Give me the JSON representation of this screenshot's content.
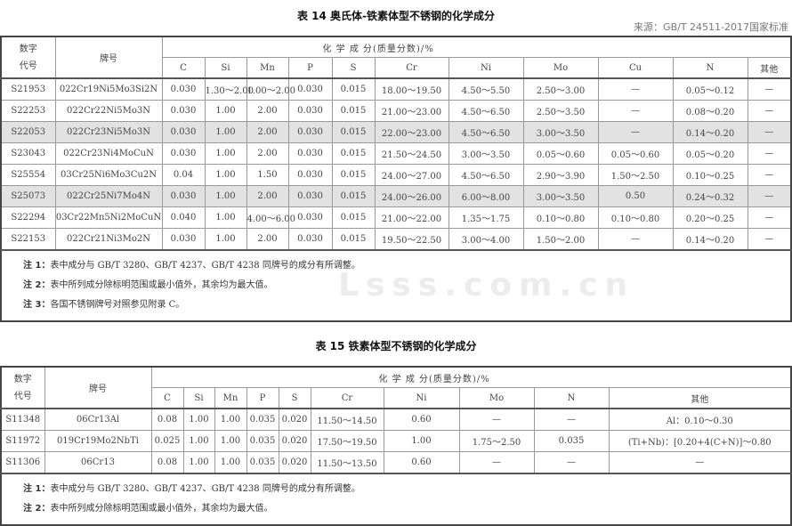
{
  "table14": {
    "title": "表 14   奥氏体-铁素体型不锈钢的化学成分",
    "source": "来源：GB/T 24511-2017国家标准",
    "col_code": "数字\n代号",
    "col_grade": "牌号",
    "composition_header": "化  学  成  分(质量分数)/%",
    "elements": [
      "C",
      "Si",
      "Mn",
      "P",
      "S",
      "Cr",
      "Ni",
      "Mo",
      "Cu",
      "N",
      "其他"
    ],
    "rows": [
      {
        "code": "S21953",
        "grade": "022Cr19Ni5Mo3Si2N",
        "values": [
          "0.030",
          "1.30～2.00",
          "1.00～2.00",
          "0.030",
          "0.015",
          "18.00～19.50",
          "4.50～5.50",
          "2.50～3.00",
          "—",
          "0.05～0.12",
          "—"
        ],
        "highlight": false
      },
      {
        "code": "S22253",
        "grade": "022Cr22Ni5Mo3N",
        "values": [
          "0.030",
          "1.00",
          "2.00",
          "0.030",
          "0.015",
          "21.00～23.00",
          "4.50～6.50",
          "2.50～3.50",
          "—",
          "0.08～0.20",
          "—"
        ],
        "highlight": false
      },
      {
        "code": "S22053",
        "grade": "022Cr23Ni5Mo3N",
        "values": [
          "0.030",
          "1.00",
          "2.00",
          "0.030",
          "0.015",
          "22.00～23.00",
          "4.50～6.50",
          "3.00～3.50",
          "—",
          "0.14～0.20",
          "—"
        ],
        "highlight": true
      },
      {
        "code": "S23043",
        "grade": "022Cr23Ni4MoCuN",
        "values": [
          "0.030",
          "1.00",
          "2.00",
          "0.030",
          "0.015",
          "21.50～24.50",
          "3.00～3.50",
          "0.05～0.60",
          "0.05～0.60",
          "0.05～0.20",
          "—"
        ],
        "highlight": false
      },
      {
        "code": "S25554",
        "grade": "03Cr25Ni6Mo3Cu2N",
        "values": [
          "0.04",
          "1.00",
          "1.50",
          "0.030",
          "0.015",
          "24.00～27.00",
          "4.50～6.50",
          "2.90～3.90",
          "1.50～2.50",
          "0.10～0.25",
          "—"
        ],
        "highlight": false
      },
      {
        "code": "S25073",
        "grade": "022Cr25Ni7Mo4N",
        "values": [
          "0.030",
          "1.00",
          "2.00",
          "0.030",
          "0.015",
          "24.00～26.00",
          "6.00～8.00",
          "3.00～3.50",
          "0.50",
          "0.24～0.32",
          "—"
        ],
        "highlight": true
      },
      {
        "code": "S22294",
        "grade": "03Cr22Mn5Ni2MoCuN",
        "values": [
          "0.040",
          "1.00",
          "4.00～6.00",
          "0.030",
          "0.015",
          "21.00～22.00",
          "1.35～1.75",
          "0.10～0.80",
          "0.10～0.80",
          "0.20～0.25",
          "—"
        ],
        "highlight": false
      },
      {
        "code": "S22153",
        "grade": "022Cr21Ni3Mo2N",
        "values": [
          "0.030",
          "1.00",
          "2.00",
          "0.030",
          "0.015",
          "19.50～22.50",
          "3.00～4.00",
          "1.50～2.00",
          "—",
          "0.14～0.20",
          "—"
        ],
        "highlight": false
      }
    ],
    "notes": [
      {
        "label": "注 1：",
        "text": "表中成分与 GB/T 3280、GB/T 4237、GB/T 4238 同牌号的成分有所调整。"
      },
      {
        "label": "注 2：",
        "text": "表中所列成分除标明范围或最小值外，其余均为最大值。"
      },
      {
        "label": "注 3：",
        "text": "各国不锈钢牌号对照参见附录 C。"
      }
    ]
  },
  "table15": {
    "title": "表 15   铁素体型不锈钢的化学成分",
    "col_code": "数字\n代号",
    "col_grade": "牌号",
    "composition_header": "化  学  成  分(质量分数)/%",
    "elements": [
      "C",
      "Si",
      "Mn",
      "P",
      "S",
      "Cr",
      "Ni",
      "Mo",
      "N",
      "其他"
    ],
    "rows": [
      {
        "code": "S11348",
        "grade": "06Cr13Al",
        "values": [
          "0.08",
          "1.00",
          "1.00",
          "0.035",
          "0.020",
          "11.50～14.50",
          "0.60",
          "—",
          "—",
          "Al：0.10～0.30"
        ]
      },
      {
        "code": "S11972",
        "grade": "019Cr19Mo2NbTi",
        "values": [
          "0.025",
          "1.00",
          "1.00",
          "0.035",
          "0.020",
          "17.50～19.50",
          "1.00",
          "1.75～2.50",
          "0.035",
          "(Ti+Nb)：[0.20+4(C+N)]～0.80"
        ]
      },
      {
        "code": "S11306",
        "grade": "06Cr13",
        "values": [
          "0.08",
          "1.00",
          "1.00",
          "0.035",
          "0.020",
          "11.50～13.50",
          "0.60",
          "—",
          "—",
          "—"
        ]
      }
    ],
    "notes": [
      {
        "label": "注 1：",
        "text": "表中成分与 GB/T 3280、GB/T 4237、GB/T 4238 同牌号的成分有所调整。"
      },
      {
        "label": "注 2：",
        "text": "表中所列成分除标明范围或最小值外，其余均为最大值。"
      }
    ]
  },
  "watermark": {
    "text": "Lsss.com.cn"
  }
}
